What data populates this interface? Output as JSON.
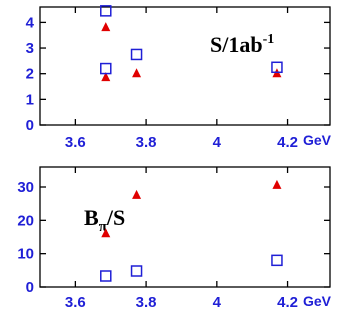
{
  "chart_data": [
    {
      "type": "scatter",
      "xlabel": "GeV",
      "xlim": [
        3.5,
        4.32
      ],
      "ylim": [
        0,
        4.6
      ],
      "x_ticks": [
        "3.6",
        "3.8",
        "4",
        "4.2"
      ],
      "y_ticks": [
        "0",
        "1",
        "2",
        "3",
        "4"
      ],
      "annotation": {
        "main": "S/1ab",
        "sup": "-1"
      },
      "series": [
        {
          "marker": "triangle",
          "color": "#e00000",
          "points": [
            [
              3.686,
              3.8
            ],
            [
              3.686,
              1.85
            ],
            [
              3.773,
              2.0
            ],
            [
              4.17,
              2.0
            ]
          ]
        },
        {
          "marker": "open-square",
          "color": "#1f1fd6",
          "points": [
            [
              3.686,
              4.45
            ],
            [
              3.686,
              2.2
            ],
            [
              3.773,
              2.75
            ],
            [
              4.17,
              2.25
            ]
          ]
        }
      ]
    },
    {
      "type": "scatter",
      "xlabel": "GeV",
      "xlim": [
        3.5,
        4.32
      ],
      "ylim": [
        0,
        36
      ],
      "x_ticks": [
        "3.6",
        "3.8",
        "4",
        "4.2"
      ],
      "y_ticks": [
        "0",
        "10",
        "20",
        "30"
      ],
      "annotation": {
        "main": "B",
        "sub": "π",
        "rest": "/S"
      },
      "series": [
        {
          "marker": "triangle",
          "color": "#e00000",
          "points": [
            [
              3.686,
              16.0
            ],
            [
              3.773,
              27.5
            ],
            [
              4.17,
              30.5
            ]
          ]
        },
        {
          "marker": "open-square",
          "color": "#1f1fd6",
          "points": [
            [
              3.686,
              3.3
            ],
            [
              3.773,
              4.8
            ],
            [
              4.17,
              8.0
            ]
          ]
        }
      ]
    }
  ]
}
